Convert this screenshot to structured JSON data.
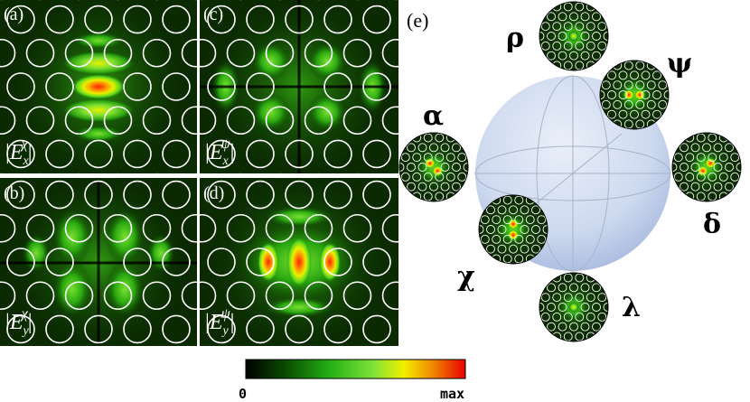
{
  "panels": [
    {
      "label": "(a)",
      "field": "E",
      "sub": "x",
      "sup": "χ"
    },
    {
      "label": "(b)",
      "field": "E",
      "sub": "y",
      "sup": "χ"
    },
    {
      "label": "(c)",
      "field": "E",
      "sub": "x",
      "sup": "ψ"
    },
    {
      "label": "(d)",
      "field": "E",
      "sub": "y",
      "sup": "ψ"
    }
  ],
  "panel_e": {
    "label": "(e)",
    "modes": [
      {
        "symbol": "ρ"
      },
      {
        "symbol": "ψ"
      },
      {
        "symbol": "α"
      },
      {
        "symbol": "δ"
      },
      {
        "symbol": "χ"
      },
      {
        "symbol": "λ"
      }
    ]
  },
  "colorbar": {
    "min_label": "0",
    "max_label": "max",
    "colors": [
      "#000000",
      "#0a4a00",
      "#22b014",
      "#7fe23a",
      "#f2f000",
      "#f08000",
      "#e80000"
    ]
  }
}
